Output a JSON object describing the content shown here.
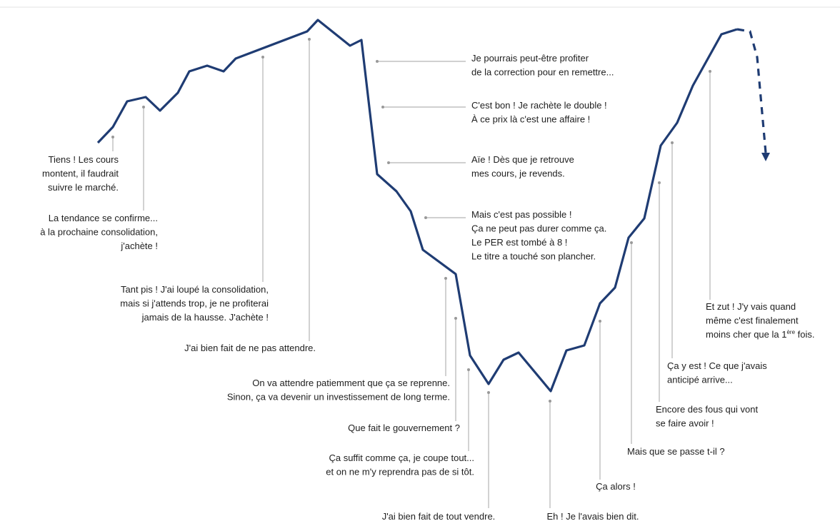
{
  "annotations": [
    {
      "lines": [
        "Tiens ! Les cours",
        "montent, il faudrait",
        "suivre le marché."
      ]
    },
    {
      "lines": [
        "La tendance se confirme...",
        "à la prochaine consolidation,",
        "j'achète !"
      ]
    },
    {
      "lines": [
        "Tant pis ! J'ai loupé la consolidation,",
        "mais si j'attends trop, je ne  profiterai",
        "jamais de la hausse. J'achète !"
      ]
    },
    {
      "lines": [
        "J'ai bien fait de ne pas attendre."
      ]
    },
    {
      "lines": [
        "Je pourrais peut-être profiter",
        "de la correction pour en remettre..."
      ]
    },
    {
      "lines": [
        "C'est bon ! Je rachète le double !",
        "À ce prix là c'est une affaire !"
      ]
    },
    {
      "lines": [
        "Aïe ! Dès que je retrouve",
        "mes cours, je revends."
      ]
    },
    {
      "lines": [
        "Mais c'est pas possible !",
        "Ça ne peut pas durer comme ça.",
        "Le PER est tombé à 8 !",
        "Le titre a touché son plancher."
      ]
    },
    {
      "lines": [
        "On va attendre patiemment que ça se reprenne.",
        "Sinon, ça va devenir un investissement de long terme."
      ]
    },
    {
      "lines": [
        "Que fait le gouvernement ?"
      ]
    },
    {
      "lines": [
        "Ça suffit comme ça, je coupe tout...",
        "et on ne m'y reprendra pas de si tôt."
      ]
    },
    {
      "lines": [
        "J'ai bien fait de tout vendre."
      ]
    },
    {
      "lines": [
        "Eh ! Je l'avais bien dit."
      ]
    },
    {
      "lines": [
        "Ça alors !"
      ]
    },
    {
      "lines": [
        "Mais que se passe t-il ?"
      ]
    },
    {
      "lines": [
        "Encore des fous qui vont",
        "se faire avoir !"
      ]
    },
    {
      "lines": [
        "Ça y est ! Ce que j'avais",
        "anticipé arrive..."
      ]
    },
    {
      "lines": [
        "Et zut ! J'y vais quand",
        "même c'est finalement",
        {
          "text": "moins cher que la 1",
          "sup": "ère",
          "tail": " fois."
        }
      ]
    }
  ]
}
